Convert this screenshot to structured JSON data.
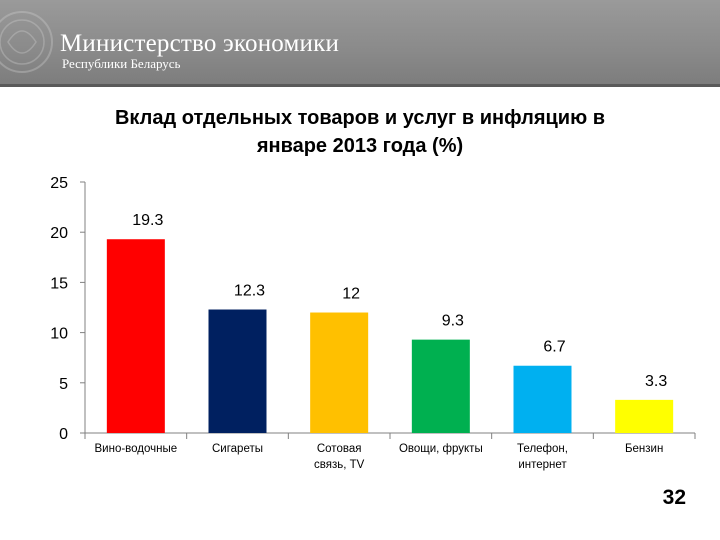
{
  "header": {
    "ministry_title": "Министерство экономики",
    "ministry_subtitle": "Республики Беларусь"
  },
  "chart_data": {
    "type": "bar",
    "title_line1": "Вклад отдельных товаров и услуг в инфляцию в",
    "title_line2": "январе 2013 года (%)",
    "categories": [
      [
        "Вино-водочные"
      ],
      [
        "Сигареты"
      ],
      [
        "Сотовая",
        "связь, TV"
      ],
      [
        "Овощи, фрукты"
      ],
      [
        "Телефон,",
        "интернет"
      ],
      [
        "Бензин"
      ]
    ],
    "values": [
      19.3,
      12.3,
      12,
      9.3,
      6.7,
      3.3
    ],
    "value_labels": [
      "19.3",
      "12.3",
      "12",
      "9.3",
      "6.7",
      "3.3"
    ],
    "colors": [
      "#ff0000",
      "#002060",
      "#ffc000",
      "#00b050",
      "#00b0f0",
      "#ffff00"
    ],
    "ylim": [
      0,
      25
    ],
    "yticks": [
      0,
      5,
      10,
      15,
      20,
      25
    ],
    "grid": false,
    "legend": "none"
  },
  "footer": {
    "page_number": "32"
  }
}
